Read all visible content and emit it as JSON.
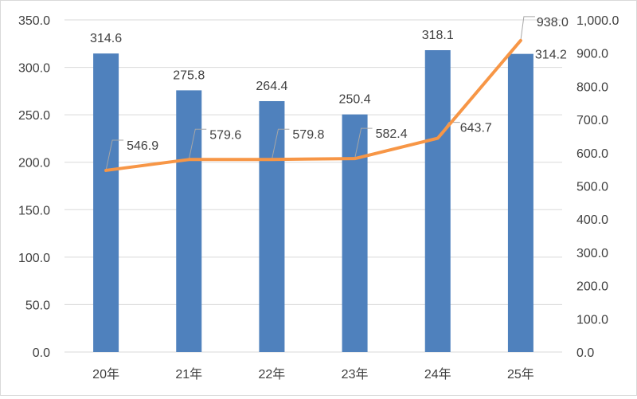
{
  "chart_data": {
    "type": "bar+line",
    "title": "",
    "categories": [
      "20年",
      "21年",
      "22年",
      "23年",
      "24年",
      "25年"
    ],
    "series": [
      {
        "name": "bars",
        "type": "bar",
        "axis": "left",
        "color": "#4f81bd",
        "values": [
          314.6,
          275.8,
          264.4,
          250.4,
          318.1,
          314.2
        ],
        "labels": [
          "314.6",
          "275.8",
          "264.4",
          "250.4",
          "318.1",
          "314.2"
        ]
      },
      {
        "name": "line",
        "type": "line",
        "axis": "right",
        "color": "#f79646",
        "values": [
          546.9,
          579.6,
          579.8,
          582.4,
          643.7,
          938.0
        ],
        "labels": [
          "546.9",
          "579.6",
          "579.8",
          "582.4",
          "643.7",
          "938.0"
        ]
      }
    ],
    "left_axis": {
      "min": 0,
      "max": 350,
      "step": 50,
      "ticks": [
        "0.0",
        "50.0",
        "100.0",
        "150.0",
        "200.0",
        "250.0",
        "300.0",
        "350.0"
      ]
    },
    "right_axis": {
      "min": 0,
      "max": 1000,
      "step": 100,
      "ticks": [
        "0.0",
        "100.0",
        "200.0",
        "300.0",
        "400.0",
        "500.0",
        "600.0",
        "700.0",
        "800.0",
        "900.0",
        "1,000.0"
      ]
    },
    "grid": true,
    "legend": "none",
    "xlabel": "",
    "ylabel": ""
  }
}
